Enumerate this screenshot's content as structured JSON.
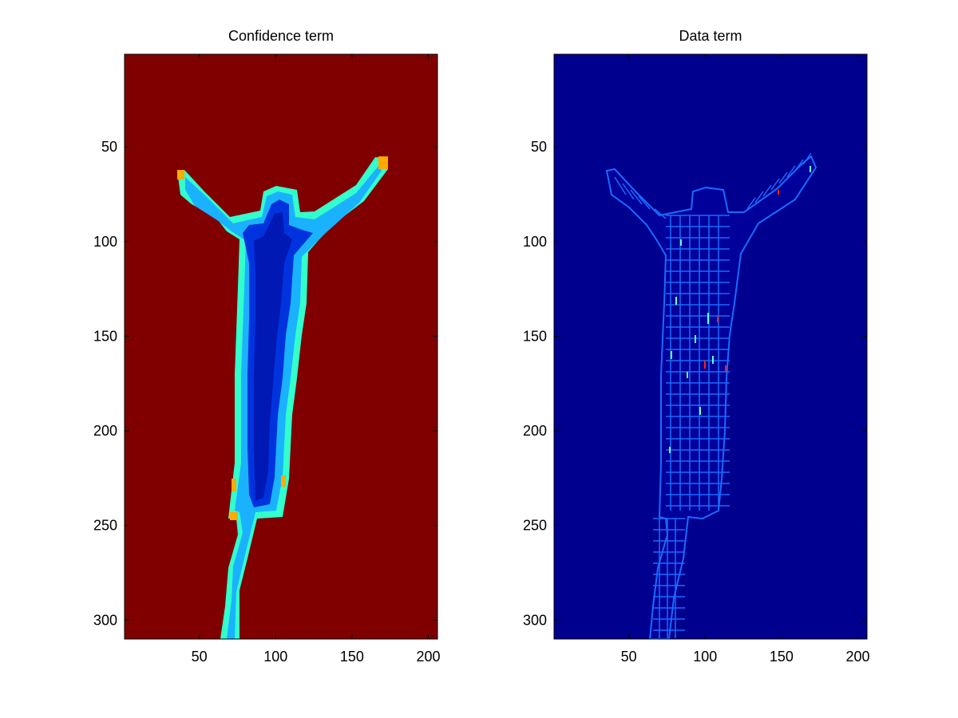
{
  "chart_data": [
    {
      "type": "heatmap",
      "title": "Confidence term",
      "xlabel": "",
      "ylabel": "",
      "xlim": [
        1,
        206
      ],
      "ylim": [
        310,
        1
      ],
      "y_reversed": true,
      "xticks": [
        50,
        100,
        150,
        200
      ],
      "yticks": [
        50,
        100,
        150,
        200,
        250,
        300
      ],
      "grid": false,
      "colormap": "jet",
      "background_value": "max",
      "background_color": "#800000",
      "region_colors": {
        "outer_band": "#33ffcc",
        "edge_band": "#1ab2ff",
        "inner_region": "#0033dd",
        "core_region": "#0018b4",
        "hot_spots": "#ffaa00"
      },
      "silhouette": "standing person with both arms raised"
    },
    {
      "type": "heatmap",
      "title": "Data term",
      "xlabel": "",
      "ylabel": "",
      "xlim": [
        1,
        206
      ],
      "ylim": [
        310,
        1
      ],
      "y_reversed": true,
      "xticks": [
        50,
        100,
        150,
        200
      ],
      "yticks": [
        50,
        100,
        150,
        200,
        250,
        300
      ],
      "grid": false,
      "colormap": "jet",
      "background_value": "min",
      "background_color": "#00008f",
      "region_colors": {
        "boundary_lines": "#1a6bff",
        "interior_fill": "#00009a",
        "hot_spots": "#66ffcc",
        "peak_spots": "#ff2200"
      },
      "silhouette": "standing person with both arms raised"
    }
  ]
}
